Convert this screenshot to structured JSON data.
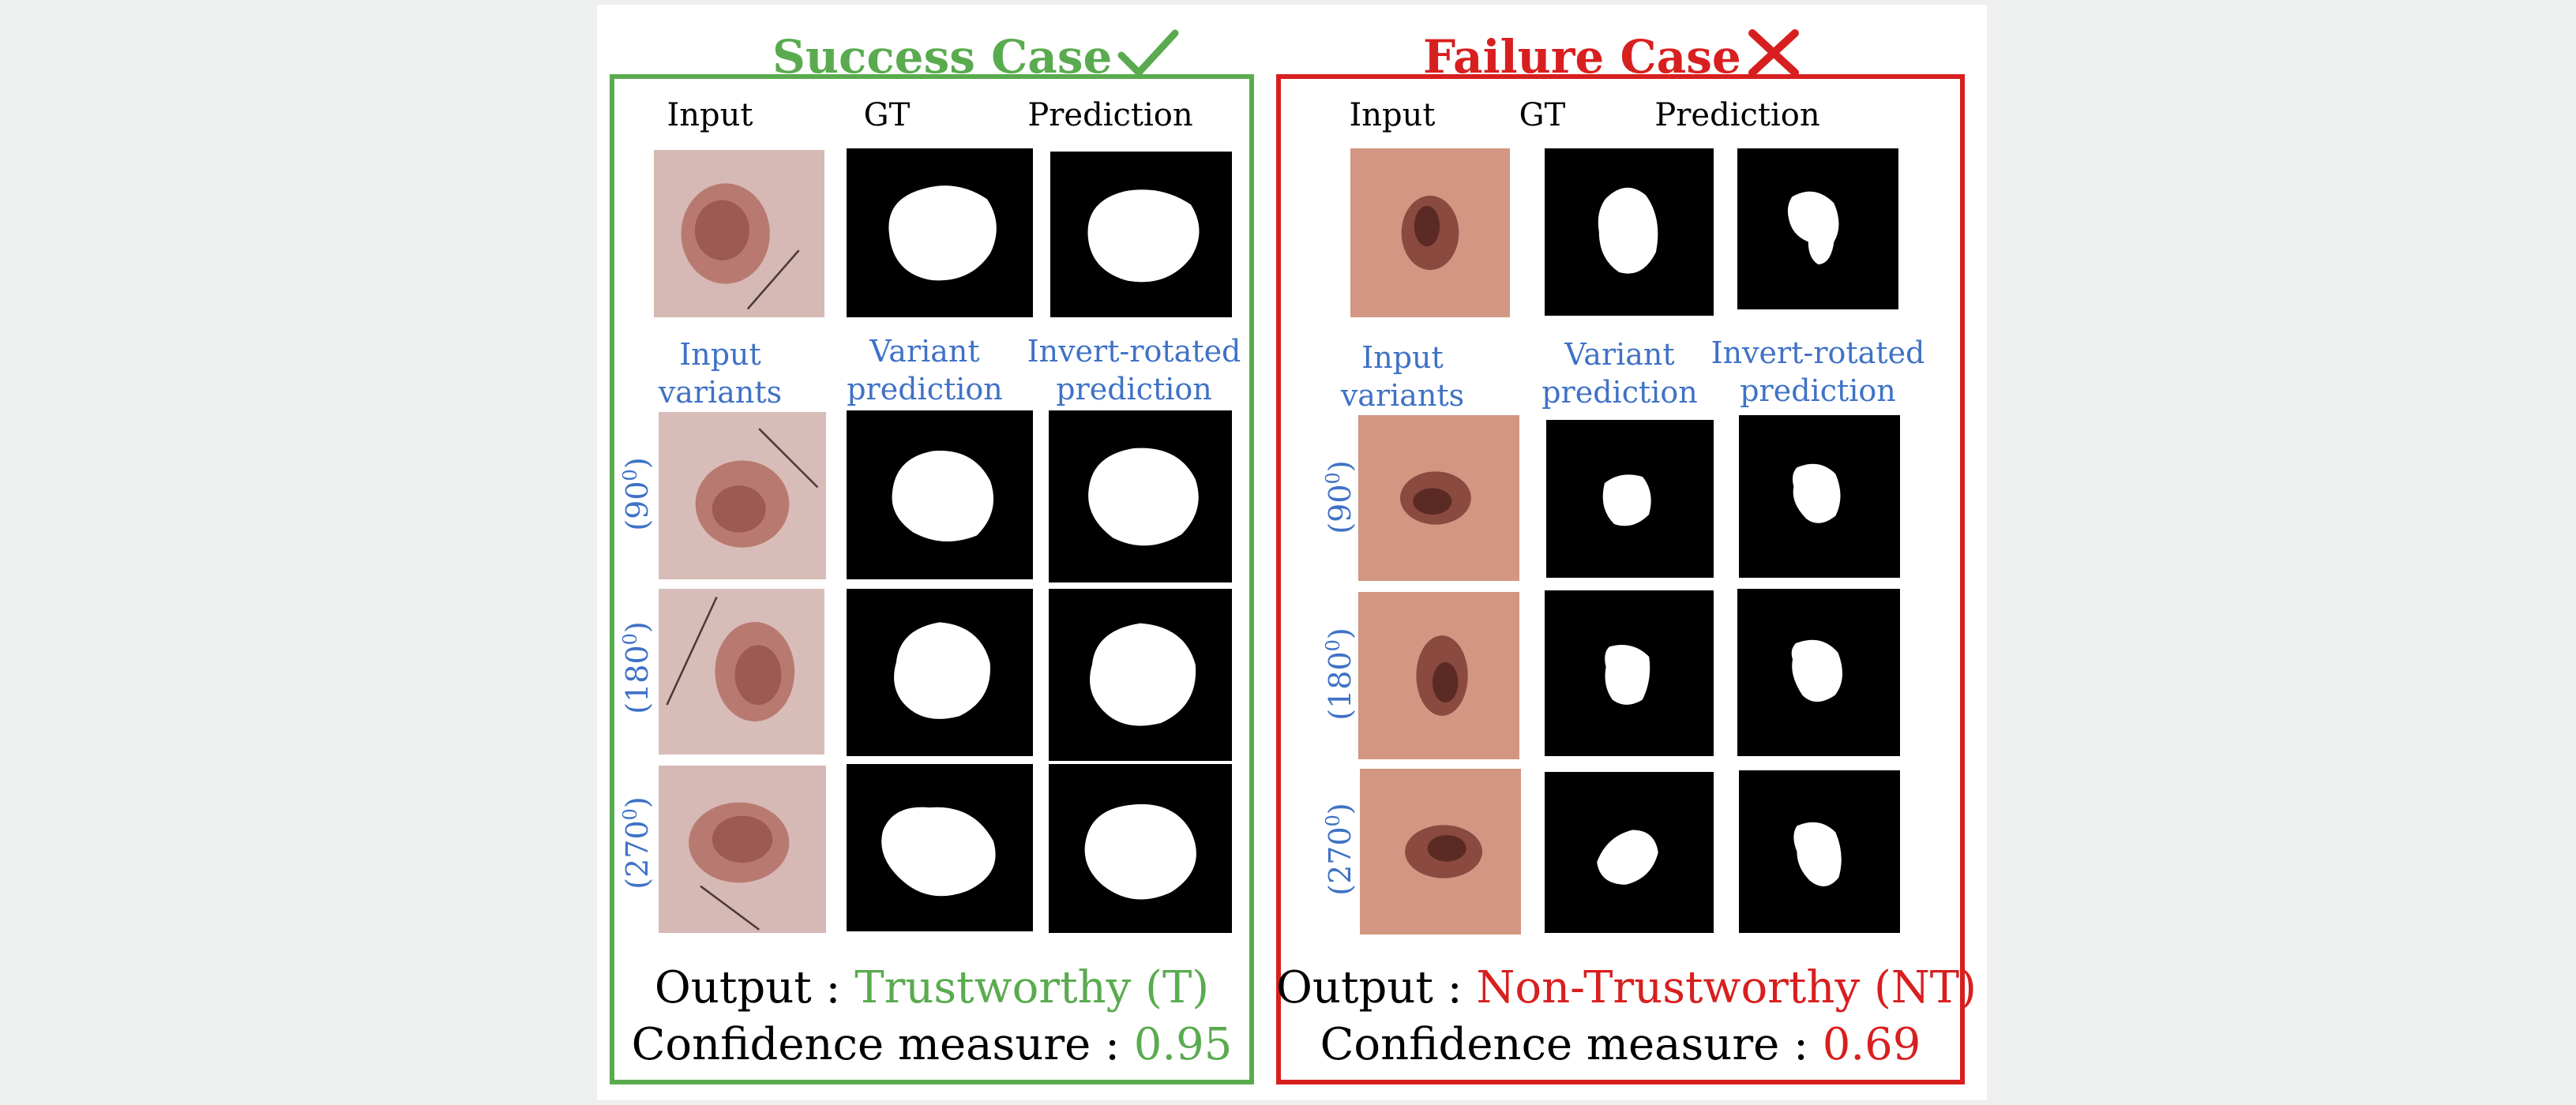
{
  "success": {
    "title": "Success Case",
    "color": "#5aab4f",
    "headers": {
      "input": "Input",
      "gt": "GT",
      "prediction": "Prediction"
    },
    "variant_labels": {
      "input": "Input\nvariants",
      "variant": "Variant\nprediction",
      "invert": "Invert-rotated\nprediction"
    },
    "rotations": [
      "90",
      "180",
      "270"
    ],
    "rotation_suffix": "0",
    "output_label": "Output : ",
    "output_value": "Trustworthy (T)",
    "confidence_label": "Confidence measure : ",
    "confidence_value": "0.95"
  },
  "failure": {
    "title": "Failure Case",
    "color": "#d81f1f",
    "headers": {
      "input": "Input",
      "gt": "GT",
      "prediction": "Prediction"
    },
    "variant_labels": {
      "input": "Input\nvariants",
      "variant": "Variant\nprediction",
      "invert": "Invert-rotated\nprediction"
    },
    "rotations": [
      "90",
      "180",
      "270"
    ],
    "rotation_suffix": "0",
    "output_label": "Output : ",
    "output_value": "Non-Trustworthy (NT)",
    "confidence_label": "Confidence measure : ",
    "confidence_value": "0.69"
  },
  "icons": {
    "success": "check-icon",
    "failure": "cross-icon"
  },
  "label_color": "#3f72c6"
}
